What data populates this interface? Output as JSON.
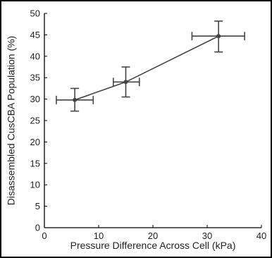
{
  "chart_data": {
    "type": "scatter",
    "title": "",
    "xlabel": "Pressure Difference Across Cell (kPa)",
    "ylabel": "Disassembled CusCBA Population (%)",
    "xlim": [
      0,
      40
    ],
    "ylim": [
      0,
      50
    ],
    "x_ticks": [
      0,
      10,
      20,
      30,
      40
    ],
    "y_ticks": [
      0,
      5,
      10,
      15,
      20,
      25,
      30,
      35,
      40,
      45,
      50
    ],
    "grid": false,
    "legend": "none",
    "line_color": "#444444",
    "series": [
      {
        "points": [
          {
            "x": 5.6,
            "y": 29.8,
            "x_err_low": 3.4,
            "x_err_high": 3.4,
            "y_err_low": 2.6,
            "y_err_high": 2.7
          },
          {
            "x": 15.0,
            "y": 34.0,
            "x_err_low": 2.3,
            "x_err_high": 2.5,
            "y_err_low": 3.5,
            "y_err_high": 3.5
          },
          {
            "x": 32.1,
            "y": 44.7,
            "x_err_low": 4.9,
            "x_err_high": 4.8,
            "y_err_low": 3.7,
            "y_err_high": 3.5
          }
        ]
      }
    ]
  }
}
